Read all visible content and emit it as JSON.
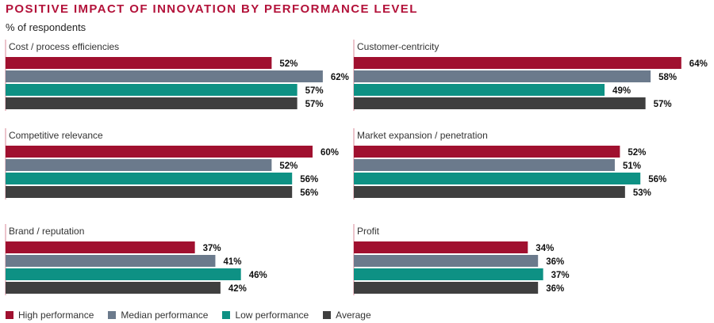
{
  "header": {
    "title": "POSITIVE IMPACT OF INNOVATION BY PERFORMANCE LEVEL",
    "subtitle": "% of respondents"
  },
  "colors": {
    "high": "#a0102f",
    "median": "#6b7a8c",
    "low": "#0e9184",
    "average": "#3f3f3f",
    "axis": "#d98a9a"
  },
  "chart_data": {
    "type": "bar",
    "orientation": "horizontal",
    "legend_position": "bottom-left",
    "series_names": [
      "High performance",
      "Median performance",
      "Low performance",
      "Average"
    ],
    "panels": [
      {
        "title": "Cost / process efficiencies",
        "values": [
          52,
          62,
          57,
          57
        ]
      },
      {
        "title": "Customer-centricity",
        "values": [
          64,
          58,
          49,
          57
        ]
      },
      {
        "title": "Competitive relevance",
        "values": [
          60,
          52,
          56,
          56
        ]
      },
      {
        "title": "Market expansion / penetration",
        "values": [
          52,
          51,
          56,
          53
        ]
      },
      {
        "title": "Brand / reputation",
        "values": [
          37,
          41,
          46,
          42
        ]
      },
      {
        "title": "Profit",
        "values": [
          34,
          36,
          37,
          36
        ]
      }
    ]
  }
}
